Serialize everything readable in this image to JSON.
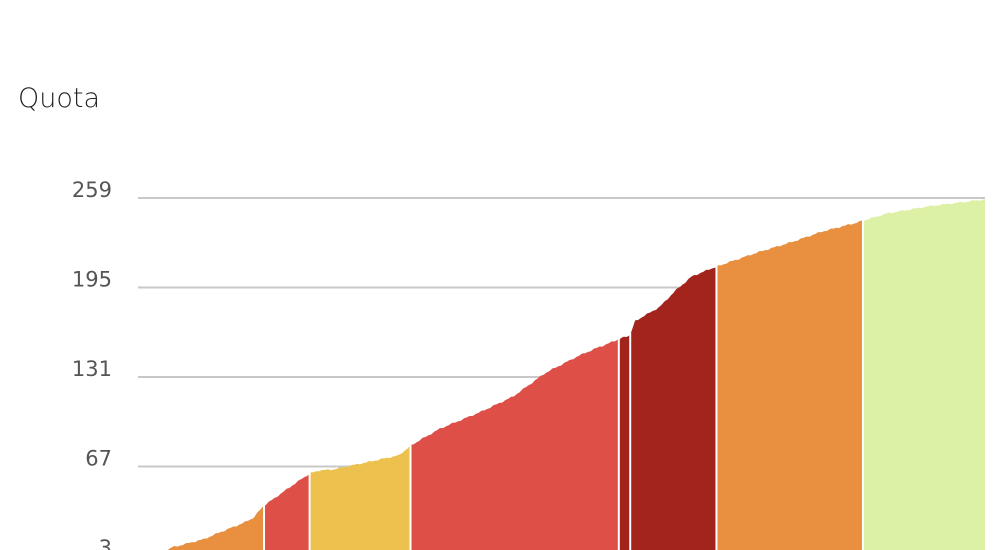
{
  "chart_data": {
    "type": "area",
    "title": "",
    "ylabel": "Quota",
    "xlabel": "",
    "ylim": [
      3,
      259
    ],
    "yticks": [
      3,
      67,
      131,
      195,
      259
    ],
    "grid": true,
    "segment_colors": {
      "orange": "#e88f40",
      "red": "#de4f48",
      "yellow": "#ecc14e",
      "darkred": "#a2241d",
      "lightgreen": "#dcf1a5"
    },
    "profile": [
      {
        "x": 0,
        "y": 3
      },
      {
        "x": 0.5,
        "y": 5
      },
      {
        "x": 1,
        "y": 9
      },
      {
        "x": 2,
        "y": 12
      },
      {
        "x": 3,
        "y": 15
      },
      {
        "x": 4,
        "y": 20
      },
      {
        "x": 5.5,
        "y": 27
      },
      {
        "x": 6.0,
        "y": 30
      },
      {
        "x": 6.7,
        "y": 39
      },
      {
        "x": 8.5,
        "y": 54
      },
      {
        "x": 9.5,
        "y": 62
      },
      {
        "x": 10.0,
        "y": 64
      },
      {
        "x": 11.0,
        "y": 65
      },
      {
        "x": 13.0,
        "y": 70
      },
      {
        "x": 15.0,
        "y": 75
      },
      {
        "x": 15.7,
        "y": 82
      },
      {
        "x": 17.5,
        "y": 94
      },
      {
        "x": 20.0,
        "y": 106
      },
      {
        "x": 22.0,
        "y": 117
      },
      {
        "x": 24.0,
        "y": 134
      },
      {
        "x": 26.0,
        "y": 146
      },
      {
        "x": 27.0,
        "y": 151
      },
      {
        "x": 28.5,
        "y": 158
      },
      {
        "x": 29.2,
        "y": 161
      },
      {
        "x": 29.5,
        "y": 171
      },
      {
        "x": 31.0,
        "y": 181
      },
      {
        "x": 32.0,
        "y": 193
      },
      {
        "x": 33.0,
        "y": 203
      },
      {
        "x": 34.5,
        "y": 210
      },
      {
        "x": 37.0,
        "y": 220
      },
      {
        "x": 39.0,
        "y": 227
      },
      {
        "x": 41.0,
        "y": 235
      },
      {
        "x": 43.0,
        "y": 241
      },
      {
        "x": 45.0,
        "y": 248
      },
      {
        "x": 47.5,
        "y": 253
      },
      {
        "x": 51.0,
        "y": 258
      }
    ],
    "segments": [
      {
        "start": 0,
        "end": 6.7,
        "color": "orange"
      },
      {
        "start": 6.7,
        "end": 9.5,
        "color": "red"
      },
      {
        "start": 9.5,
        "end": 15.7,
        "color": "yellow"
      },
      {
        "start": 15.7,
        "end": 28.5,
        "color": "red"
      },
      {
        "start": 28.5,
        "end": 29.2,
        "color": "darkred"
      },
      {
        "start": 29.2,
        "end": 34.5,
        "color": "darkred"
      },
      {
        "start": 34.5,
        "end": 43.5,
        "color": "orange"
      },
      {
        "start": 43.5,
        "end": 51.0,
        "color": "lightgreen"
      }
    ]
  }
}
